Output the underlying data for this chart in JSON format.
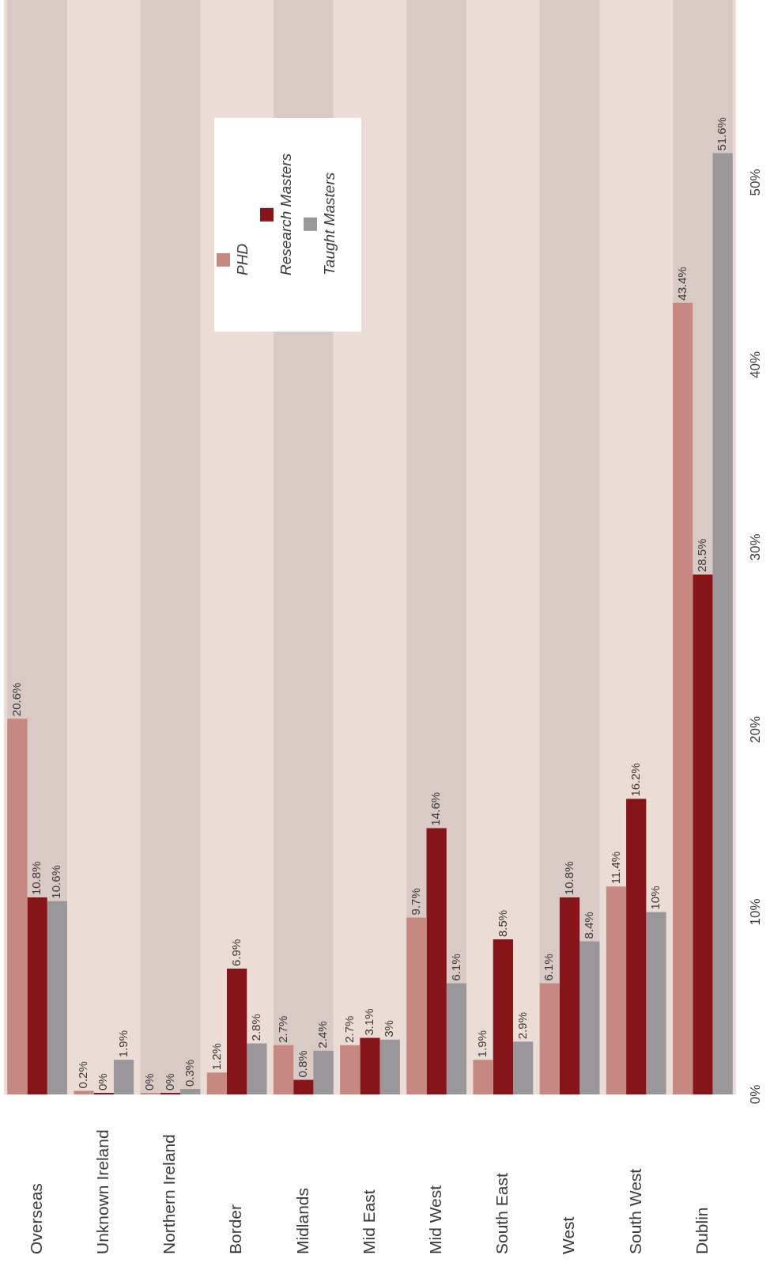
{
  "chart_data": {
    "type": "bar",
    "categories": [
      "Overseas",
      "Unknown Ireland",
      "Northern Ireland",
      "Border",
      "Midlands",
      "Mid East",
      "Mid West",
      "South East",
      "West",
      "South West",
      "Dublin"
    ],
    "series": [
      {
        "name": "PHD",
        "color": "#c88882",
        "values": [
          20.6,
          0.2,
          0,
          1.2,
          2.7,
          2.7,
          9.7,
          1.9,
          6.1,
          11.4,
          43.4
        ],
        "value_labels": [
          "20.6%",
          "0.2%",
          "0%",
          "1.2%",
          "2.7%",
          "2.7%",
          "9.7%",
          "1.9%",
          "6.1%",
          "11.4%",
          "43.4%"
        ]
      },
      {
        "name": "Research Masters",
        "color": "#861418",
        "values": [
          10.8,
          0,
          0,
          6.9,
          0.8,
          3.1,
          14.6,
          8.5,
          10.8,
          16.2,
          28.5
        ],
        "value_labels": [
          "10.8%",
          "0%",
          "0%",
          "6.9%",
          "0.8%",
          "3.1%",
          "14.6%",
          "8.5%",
          "10.8%",
          "16.2%",
          "28.5%"
        ]
      },
      {
        "name": "Taught Masters",
        "color": "#9a979b",
        "values": [
          10.6,
          1.9,
          0.3,
          2.8,
          2.4,
          3,
          6.1,
          2.9,
          8.4,
          10,
          51.6
        ],
        "value_labels": [
          "10.6%",
          "1.9%",
          "0.3%",
          "2.8%",
          "2.4%",
          "3%",
          "6.1%",
          "2.9%",
          "8.4%",
          "10%",
          "51.6%"
        ]
      }
    ],
    "ylim": [
      0,
      60
    ],
    "yticks": [
      {
        "value": 0,
        "label": "0%"
      },
      {
        "value": 10,
        "label": "10%"
      },
      {
        "value": 20,
        "label": "20%"
      },
      {
        "value": 30,
        "label": "30%"
      },
      {
        "value": 40,
        "label": "40%"
      },
      {
        "value": 50,
        "label": "50%"
      }
    ],
    "bands": [
      {
        "axis": "x",
        "from": "Overseas",
        "to": "Overseas",
        "color": "#d9cac6"
      },
      {
        "axis": "x",
        "from": "Northern Ireland",
        "to": "Northern Ireland",
        "color": "#d9cac6"
      },
      {
        "axis": "x",
        "from": "Midlands",
        "to": "Midlands",
        "color": "#d9cac6"
      },
      {
        "axis": "x",
        "from": "Mid West",
        "to": "Mid West",
        "color": "#d9cac6"
      },
      {
        "axis": "x",
        "from": "West",
        "to": "West",
        "color": "#d9cac6"
      },
      {
        "axis": "x",
        "from": "Dublin",
        "to": "Dublin",
        "color": "#d9cac6"
      }
    ],
    "grid": false,
    "legend": "top"
  }
}
